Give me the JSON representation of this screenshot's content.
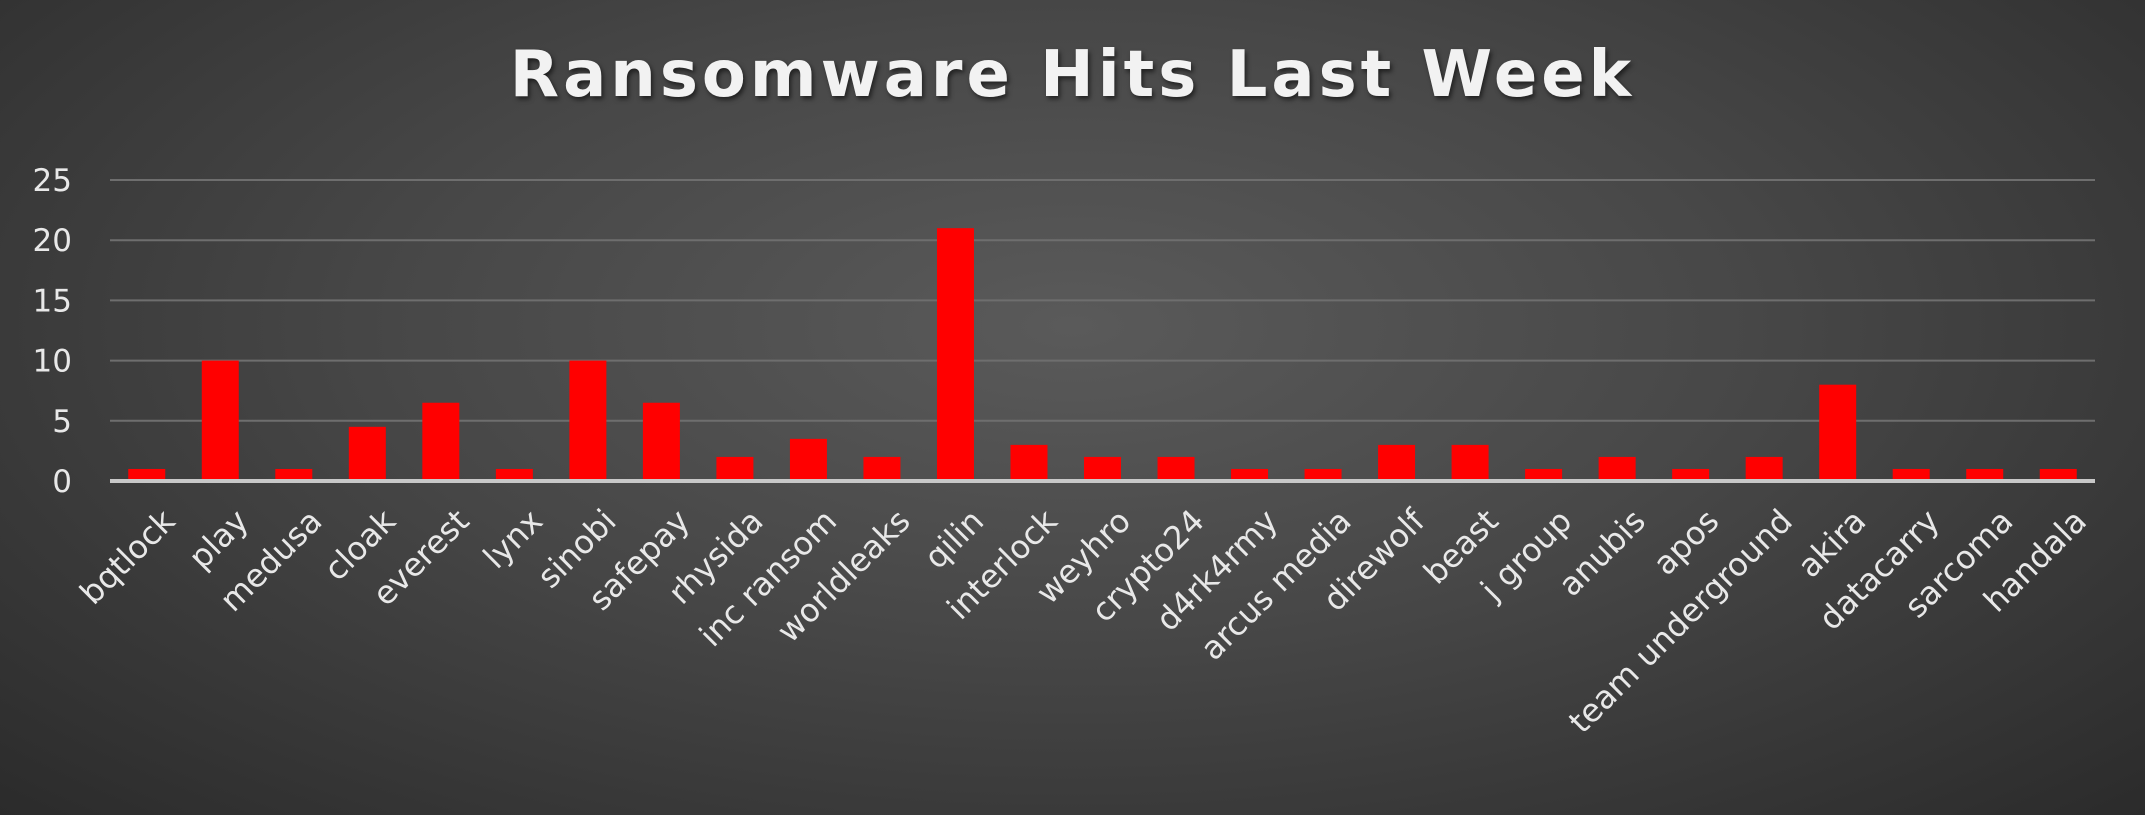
{
  "chart_data": {
    "type": "bar",
    "title": "Ransomware Hits Last Week",
    "xlabel": "",
    "ylabel": "",
    "ylim": [
      0,
      25
    ],
    "yticks": [
      0,
      5,
      10,
      15,
      20,
      25
    ],
    "grid": true,
    "legend": "none",
    "categories": [
      "bqtlock",
      "play",
      "medusa",
      "cloak",
      "everest",
      "lynx",
      "sinobi",
      "safepay",
      "rhysida",
      "inc ransom",
      "worldleaks",
      "qilin",
      "interlock",
      "weyhro",
      "crypto24",
      "d4rk4rmy",
      "arcus media",
      "direwolf",
      "beast",
      "j group",
      "anubis",
      "apos",
      "team underground",
      "akira",
      "datacarry",
      "sarcoma",
      "handala"
    ],
    "values": [
      1,
      10,
      1,
      4.5,
      6.5,
      1,
      10,
      6.5,
      2,
      3.5,
      2,
      21,
      3,
      2,
      2,
      1,
      1,
      3,
      3,
      1,
      2,
      1,
      2,
      8,
      1,
      1,
      1
    ]
  },
  "colors": {
    "bar": "#ff0000",
    "grid": "#6e6e6e",
    "axis": "#c8c8c8",
    "text": "#e8e8e8"
  }
}
